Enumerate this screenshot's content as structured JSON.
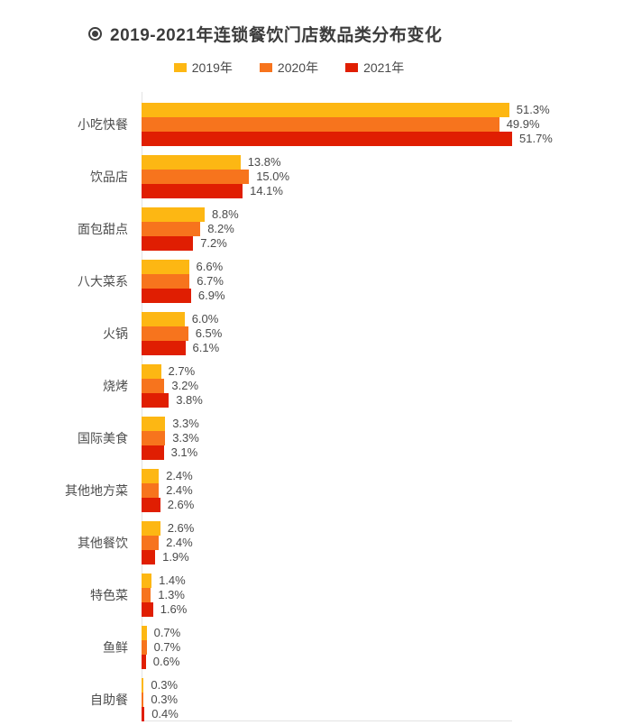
{
  "header": {
    "icon": "bullseye-icon"
  },
  "chart_data": {
    "type": "bar",
    "orientation": "horizontal",
    "title": "2019-2021年连锁餐饮门店数品类分布变化",
    "categories": [
      "小吃快餐",
      "饮品店",
      "面包甜点",
      "八大菜系",
      "火锅",
      "烧烤",
      "国际美食",
      "其他地方菜",
      "其他餐饮",
      "特色菜",
      "鱼鲜",
      "自助餐"
    ],
    "series": [
      {
        "name": "2019年",
        "color": "#fdb713",
        "values": [
          51.3,
          13.8,
          8.8,
          6.6,
          6.0,
          2.7,
          3.3,
          2.4,
          2.6,
          1.4,
          0.7,
          0.3
        ]
      },
      {
        "name": "2020年",
        "color": "#f7741d",
        "values": [
          49.9,
          15.0,
          8.2,
          6.7,
          6.5,
          3.2,
          3.3,
          2.4,
          2.4,
          1.3,
          0.7,
          0.3
        ]
      },
      {
        "name": "2021年",
        "color": "#e01e02",
        "values": [
          51.7,
          14.1,
          7.2,
          6.9,
          6.1,
          3.8,
          3.1,
          2.6,
          1.9,
          1.6,
          0.6,
          0.4
        ]
      }
    ],
    "value_suffix": "%",
    "data_labels": true,
    "xlim": [
      0,
      51.7
    ],
    "legend_position": "top",
    "grid": false,
    "axis_color": "#e4e4e4",
    "text_color": "#4a4a4a"
  }
}
